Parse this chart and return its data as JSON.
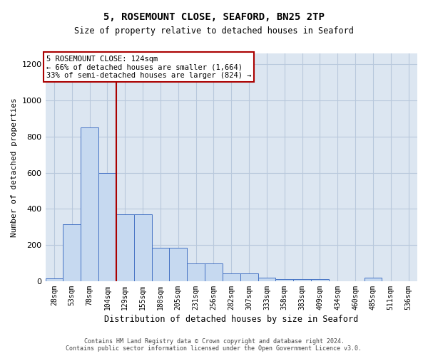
{
  "title": "5, ROSEMOUNT CLOSE, SEAFORD, BN25 2TP",
  "subtitle": "Size of property relative to detached houses in Seaford",
  "xlabel": "Distribution of detached houses by size in Seaford",
  "ylabel": "Number of detached properties",
  "footer_line1": "Contains HM Land Registry data © Crown copyright and database right 2024.",
  "footer_line2": "Contains public sector information licensed under the Open Government Licence v3.0.",
  "bin_labels": [
    "28sqm",
    "53sqm",
    "78sqm",
    "104sqm",
    "129sqm",
    "155sqm",
    "180sqm",
    "205sqm",
    "231sqm",
    "256sqm",
    "282sqm",
    "307sqm",
    "333sqm",
    "358sqm",
    "383sqm",
    "409sqm",
    "434sqm",
    "460sqm",
    "485sqm",
    "511sqm",
    "536sqm"
  ],
  "bar_values": [
    15,
    315,
    850,
    600,
    370,
    370,
    185,
    185,
    100,
    100,
    45,
    45,
    20,
    10,
    10,
    10,
    0,
    0,
    20,
    0,
    0
  ],
  "bar_color": "#c6d9f0",
  "bar_edge_color": "#4472c4",
  "grid_color": "#b8c8dc",
  "background_color": "#dce6f1",
  "red_line_color": "#aa0000",
  "annotation_line1": "5 ROSEMOUNT CLOSE: 124sqm",
  "annotation_line2": "← 66% of detached houses are smaller (1,664)",
  "annotation_line3": "33% of semi-detached houses are larger (824) →",
  "annotation_box_edge": "#aa0000",
  "ylim": [
    0,
    1260
  ],
  "yticks": [
    0,
    200,
    400,
    600,
    800,
    1000,
    1200
  ],
  "figsize": [
    6.0,
    5.0
  ],
  "dpi": 100
}
